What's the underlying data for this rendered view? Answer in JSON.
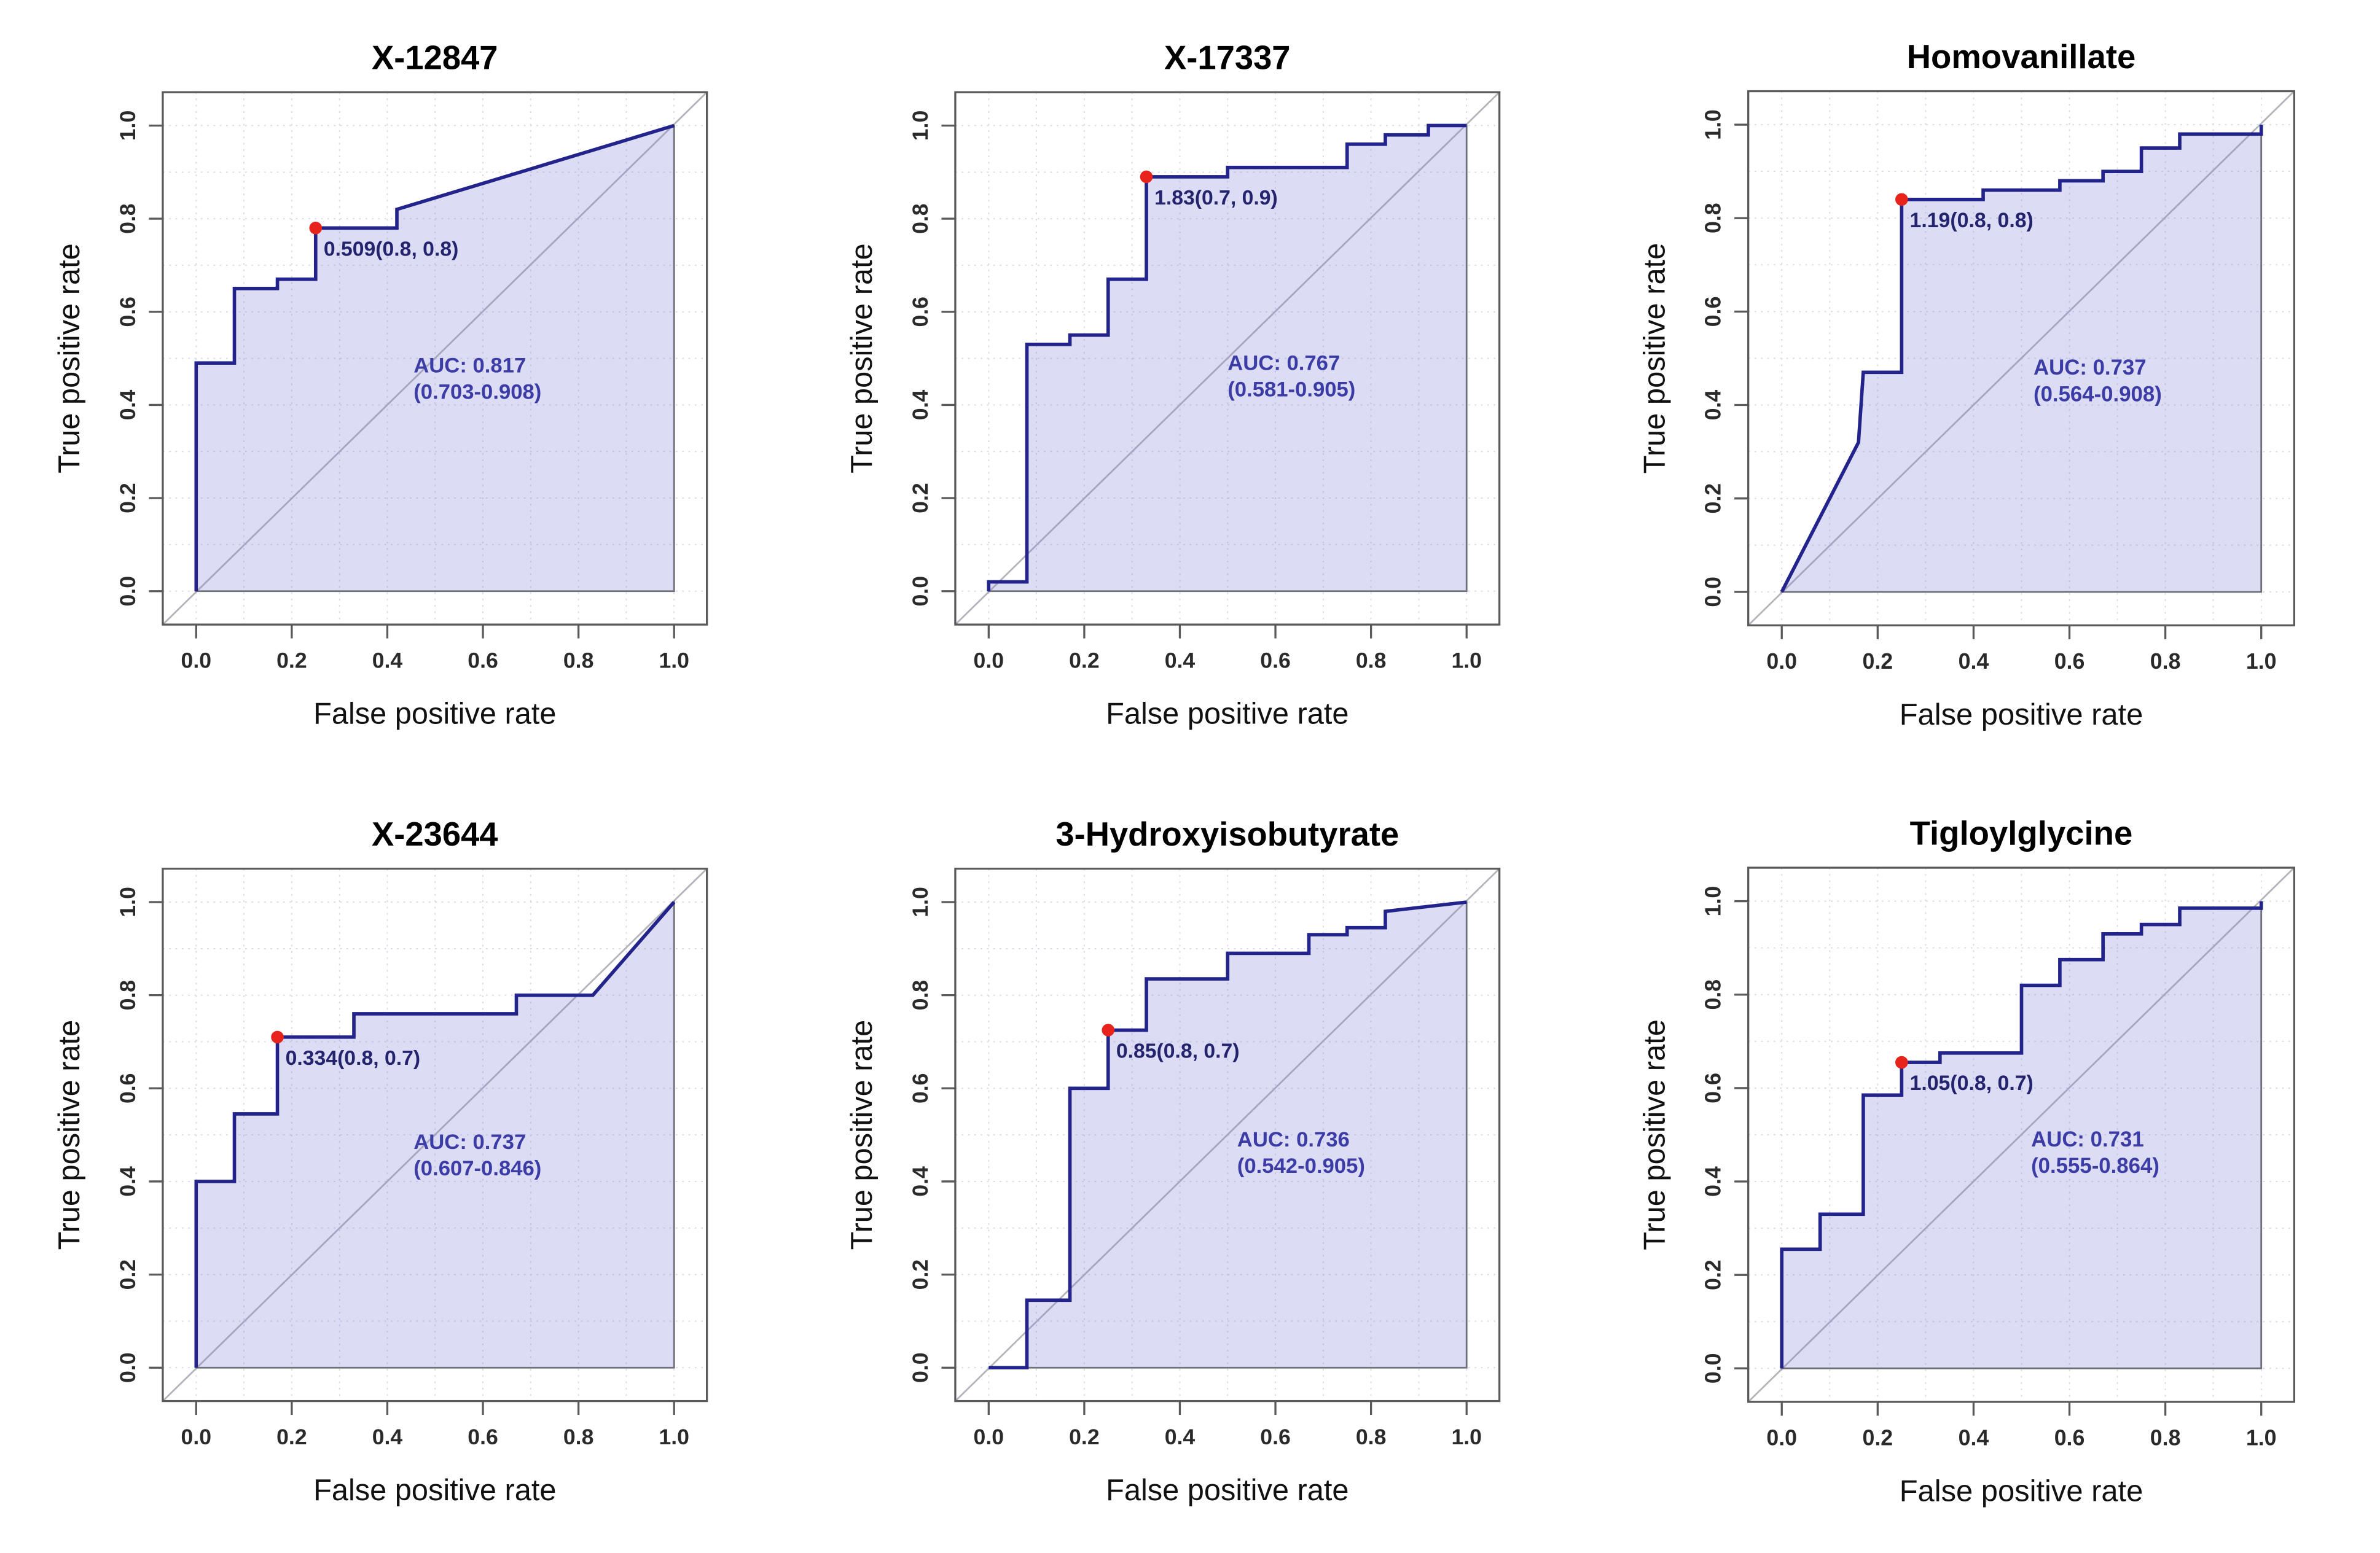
{
  "figure": {
    "xlabel": "False positive rate",
    "ylabel": "True positive rate"
  },
  "axes": {
    "tick_values": [
      0.0,
      0.2,
      0.4,
      0.6,
      0.8,
      1.0
    ],
    "tick_labels": [
      "0.0",
      "0.2",
      "0.4",
      "0.6",
      "0.8",
      "1.0"
    ]
  },
  "colors": {
    "curve": "#23238c",
    "area_fill": "rgba(130,130,215,0.28)",
    "area_border": "#70707a",
    "diagonal": "#b4b4bc",
    "marker": "#e8231c",
    "annotation_text": "#23236e",
    "auc_text": "#3c3ca6",
    "frame": "#5a5a5a",
    "grid": "#d9d9e8",
    "tick_text": "#2a2a2a",
    "title_text": "#000000"
  },
  "chart_data": [
    {
      "type": "line",
      "title": "X-12847",
      "xlabel": "False positive rate",
      "ylabel": "True positive rate",
      "xlim": [
        0,
        1
      ],
      "ylim": [
        0,
        1
      ],
      "auc": 0.817,
      "auc_label": "AUC: 0.817",
      "auc_ci_label": "(0.703-0.908)",
      "auc_text_pos": [
        0.455,
        0.47
      ],
      "threshold_label": "0.509(0.8, 0.8)",
      "marker": [
        0.25,
        0.78
      ],
      "roc_points": [
        [
          0,
          0
        ],
        [
          0,
          0.49
        ],
        [
          0.08,
          0.49
        ],
        [
          0.08,
          0.65
        ],
        [
          0.17,
          0.65
        ],
        [
          0.17,
          0.67
        ],
        [
          0.25,
          0.67
        ],
        [
          0.25,
          0.78
        ],
        [
          0.42,
          0.78
        ],
        [
          0.42,
          0.82
        ],
        [
          1,
          1
        ]
      ]
    },
    {
      "type": "line",
      "title": "X-17337",
      "xlabel": "False positive rate",
      "ylabel": "True positive rate",
      "xlim": [
        0,
        1
      ],
      "ylim": [
        0,
        1
      ],
      "auc": 0.767,
      "auc_label": "AUC: 0.767",
      "auc_ci_label": "(0.581-0.905)",
      "auc_text_pos": [
        0.5,
        0.475
      ],
      "threshold_label": "1.83(0.7, 0.9)",
      "marker": [
        0.33,
        0.89
      ],
      "roc_points": [
        [
          0,
          0
        ],
        [
          0,
          0.02
        ],
        [
          0.08,
          0.02
        ],
        [
          0.08,
          0.53
        ],
        [
          0.17,
          0.53
        ],
        [
          0.17,
          0.55
        ],
        [
          0.25,
          0.55
        ],
        [
          0.25,
          0.67
        ],
        [
          0.33,
          0.67
        ],
        [
          0.33,
          0.89
        ],
        [
          0.5,
          0.89
        ],
        [
          0.5,
          0.91
        ],
        [
          0.75,
          0.91
        ],
        [
          0.75,
          0.96
        ],
        [
          0.83,
          0.96
        ],
        [
          0.83,
          0.98
        ],
        [
          0.92,
          0.98
        ],
        [
          0.92,
          1
        ],
        [
          1,
          1
        ]
      ]
    },
    {
      "type": "line",
      "title": "Homovanillate",
      "xlabel": "False positive rate",
      "ylabel": "True positive rate",
      "xlim": [
        0,
        1
      ],
      "ylim": [
        0,
        1
      ],
      "auc": 0.737,
      "auc_label": "AUC: 0.737",
      "auc_ci_label": "(0.564-0.908)",
      "auc_text_pos": [
        0.525,
        0.465
      ],
      "threshold_label": "1.19(0.8, 0.8)",
      "marker": [
        0.25,
        0.84
      ],
      "roc_points": [
        [
          0,
          0
        ],
        [
          0.16,
          0.32
        ],
        [
          0.17,
          0.47
        ],
        [
          0.25,
          0.47
        ],
        [
          0.25,
          0.84
        ],
        [
          0.42,
          0.84
        ],
        [
          0.42,
          0.86
        ],
        [
          0.58,
          0.86
        ],
        [
          0.58,
          0.88
        ],
        [
          0.67,
          0.88
        ],
        [
          0.67,
          0.9
        ],
        [
          0.75,
          0.9
        ],
        [
          0.75,
          0.95
        ],
        [
          0.83,
          0.95
        ],
        [
          0.83,
          0.98
        ],
        [
          1,
          0.98
        ],
        [
          1,
          1
        ]
      ]
    },
    {
      "type": "line",
      "title": "X-23644",
      "xlabel": "False positive rate",
      "ylabel": "True positive rate",
      "xlim": [
        0,
        1
      ],
      "ylim": [
        0,
        1
      ],
      "auc": 0.737,
      "auc_label": "AUC: 0.737",
      "auc_ci_label": "(0.607-0.846)",
      "auc_text_pos": [
        0.455,
        0.47
      ],
      "threshold_label": "0.334(0.8, 0.7)",
      "marker": [
        0.17,
        0.71
      ],
      "roc_points": [
        [
          0,
          0
        ],
        [
          0,
          0.4
        ],
        [
          0.08,
          0.4
        ],
        [
          0.08,
          0.545
        ],
        [
          0.17,
          0.545
        ],
        [
          0.17,
          0.71
        ],
        [
          0.33,
          0.71
        ],
        [
          0.33,
          0.76
        ],
        [
          0.67,
          0.76
        ],
        [
          0.67,
          0.8
        ],
        [
          0.83,
          0.8
        ],
        [
          1,
          1
        ]
      ]
    },
    {
      "type": "line",
      "title": "3-Hydroxyisobutyrate",
      "xlabel": "False positive rate",
      "ylabel": "True positive rate",
      "xlim": [
        0,
        1
      ],
      "ylim": [
        0,
        1
      ],
      "auc": 0.736,
      "auc_label": "AUC: 0.736",
      "auc_ci_label": "(0.542-0.905)",
      "auc_text_pos": [
        0.52,
        0.475
      ],
      "threshold_label": "0.85(0.8, 0.7)",
      "marker": [
        0.25,
        0.725
      ],
      "roc_points": [
        [
          0,
          0
        ],
        [
          0.08,
          0
        ],
        [
          0.08,
          0.145
        ],
        [
          0.17,
          0.145
        ],
        [
          0.17,
          0.6
        ],
        [
          0.25,
          0.6
        ],
        [
          0.25,
          0.725
        ],
        [
          0.33,
          0.725
        ],
        [
          0.33,
          0.835
        ],
        [
          0.5,
          0.835
        ],
        [
          0.5,
          0.89
        ],
        [
          0.67,
          0.89
        ],
        [
          0.67,
          0.93
        ],
        [
          0.75,
          0.93
        ],
        [
          0.75,
          0.945
        ],
        [
          0.83,
          0.945
        ],
        [
          0.83,
          0.98
        ],
        [
          1,
          1
        ]
      ]
    },
    {
      "type": "line",
      "title": "Tigloylglycine",
      "xlabel": "False positive rate",
      "ylabel": "True positive rate",
      "xlim": [
        0,
        1
      ],
      "ylim": [
        0,
        1
      ],
      "auc": 0.731,
      "auc_label": "AUC: 0.731",
      "auc_ci_label": "(0.555-0.864)",
      "auc_text_pos": [
        0.52,
        0.475
      ],
      "threshold_label": "1.05(0.8, 0.7)",
      "marker": [
        0.25,
        0.655
      ],
      "roc_points": [
        [
          0,
          0
        ],
        [
          0,
          0.255
        ],
        [
          0.08,
          0.255
        ],
        [
          0.08,
          0.33
        ],
        [
          0.17,
          0.33
        ],
        [
          0.17,
          0.585
        ],
        [
          0.25,
          0.585
        ],
        [
          0.25,
          0.655
        ],
        [
          0.33,
          0.655
        ],
        [
          0.33,
          0.675
        ],
        [
          0.5,
          0.675
        ],
        [
          0.5,
          0.82
        ],
        [
          0.58,
          0.82
        ],
        [
          0.58,
          0.875
        ],
        [
          0.67,
          0.875
        ],
        [
          0.67,
          0.93
        ],
        [
          0.75,
          0.93
        ],
        [
          0.75,
          0.95
        ],
        [
          0.83,
          0.95
        ],
        [
          0.83,
          0.985
        ],
        [
          1,
          0.985
        ],
        [
          1,
          1
        ]
      ]
    }
  ]
}
